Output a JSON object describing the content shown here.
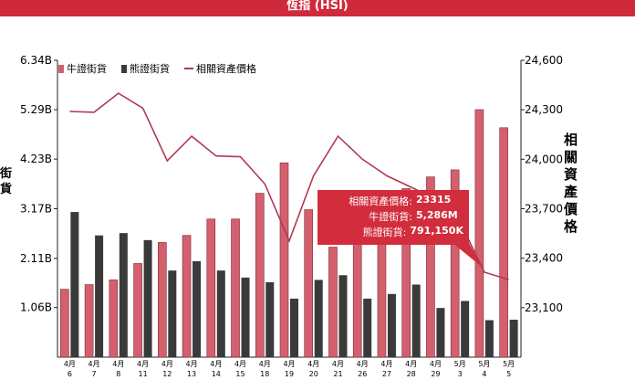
{
  "header": {
    "title": "恆指 (HSI)"
  },
  "axes": {
    "left_title": "街貨",
    "right_title": "相關資產價格",
    "left_ticks": [
      "6.34B",
      "5.29B",
      "4.23B",
      "3.17B",
      "2.11B",
      "1.06B"
    ],
    "right_ticks": [
      "24,600",
      "24,300",
      "24,000",
      "23,700",
      "23,400",
      "23,100"
    ]
  },
  "legend": {
    "bull": "牛證街貨",
    "bear": "熊證街貨",
    "price": "相關資產價格"
  },
  "colors": {
    "bull": "#d4606e",
    "bear": "#3a3a3a",
    "price": "#b03a55",
    "tooltip": "#d22d3d"
  },
  "tooltip": {
    "price_label": "相關資產價格:",
    "price_value": "23315",
    "bull_label": "牛證街貨:",
    "bull_value": "5,286M",
    "bear_label": "熊證街貨:",
    "bear_value": "791,150K"
  },
  "chart_data": {
    "type": "bar",
    "categories": [
      {
        "month": "4月",
        "day": "6"
      },
      {
        "month": "4月",
        "day": "7"
      },
      {
        "month": "4月",
        "day": "8"
      },
      {
        "month": "4月",
        "day": "11"
      },
      {
        "month": "4月",
        "day": "12"
      },
      {
        "month": "4月",
        "day": "13"
      },
      {
        "month": "4月",
        "day": "14"
      },
      {
        "month": "4月",
        "day": "15"
      },
      {
        "month": "4月",
        "day": "18"
      },
      {
        "month": "4月",
        "day": "19"
      },
      {
        "month": "4月",
        "day": "20"
      },
      {
        "month": "4月",
        "day": "21"
      },
      {
        "month": "4月",
        "day": "26"
      },
      {
        "month": "4月",
        "day": "27"
      },
      {
        "month": "4月",
        "day": "28"
      },
      {
        "month": "4月",
        "day": "29"
      },
      {
        "month": "5月",
        "day": "3"
      },
      {
        "month": "5月",
        "day": "4"
      },
      {
        "month": "5月",
        "day": "5"
      }
    ],
    "series": [
      {
        "name": "牛證街貨",
        "axis": "left",
        "unit": "B",
        "values": [
          1.45,
          1.55,
          1.65,
          2.0,
          2.45,
          2.6,
          2.95,
          2.95,
          3.5,
          4.15,
          3.15,
          2.35,
          2.9,
          3.1,
          3.6,
          3.85,
          4.0,
          5.286,
          4.9
        ]
      },
      {
        "name": "熊證街貨",
        "axis": "left",
        "unit": "B",
        "values": [
          3.1,
          2.6,
          2.65,
          2.5,
          1.85,
          2.05,
          1.85,
          1.7,
          1.6,
          1.25,
          1.65,
          1.75,
          1.25,
          1.35,
          1.55,
          1.05,
          1.2,
          0.79,
          0.8
        ]
      },
      {
        "name": "相關資產價格",
        "axis": "right",
        "type": "line",
        "values": [
          24290,
          24285,
          24400,
          24310,
          23990,
          24140,
          24020,
          24015,
          23850,
          23505,
          23900,
          24140,
          24000,
          23900,
          23830,
          23760,
          23620,
          23315,
          23270
        ]
      }
    ],
    "ylim_left": [
      0,
      6.34
    ],
    "ylim_right": [
      22800,
      24600
    ],
    "grid": false,
    "legend_position": "top-left"
  }
}
